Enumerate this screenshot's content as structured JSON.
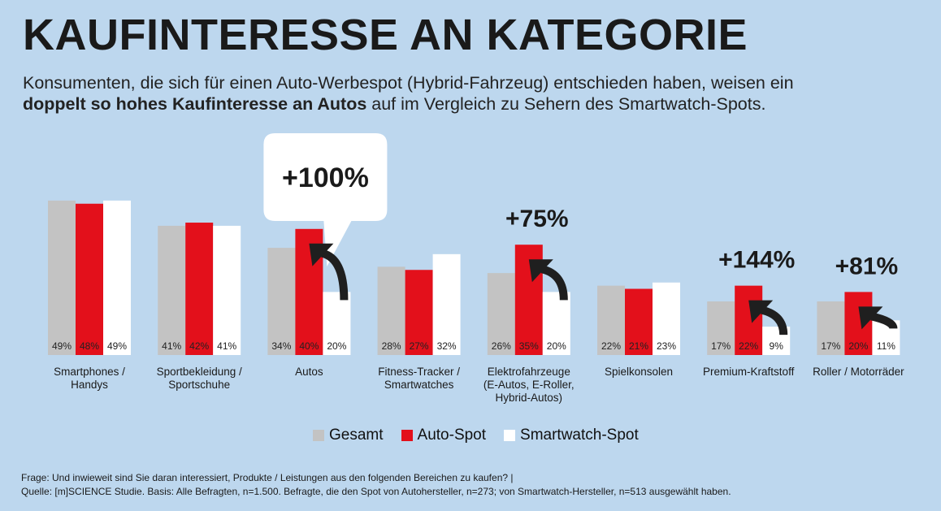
{
  "header": {
    "title": "KAUFINTERESSE AN KATEGORIE",
    "subtitle_part1": "Konsumenten, die sich für einen Auto-Werbespot (Hybrid-Fahrzeug) entschieden haben, weisen ein",
    "subtitle_bold": "doppelt so hohes Kaufinteresse an Autos",
    "subtitle_part2": " auf im Vergleich zu Sehern des Smartwatch-Spots."
  },
  "legend": {
    "gesamt": "Gesamt",
    "auto": "Auto-Spot",
    "smartwatch": "Smartwatch-Spot"
  },
  "footer": {
    "line1": "Frage: Und inwieweit sind Sie daran interessiert, Produkte / Leistungen aus den folgenden Bereichen zu kaufen? |",
    "line2": "Quelle: [m]SCIENCE Studie. Basis: Alle Befragten, n=1.500. Befragte, die den Spot von Autohersteller, n=273; von Smartwatch-Hersteller, n=513 ausgewählt haben."
  },
  "colors": {
    "background": "#bdd7ee",
    "gesamt": "#c3c3c3",
    "auto": "#e3101b",
    "smartwatch": "#ffffff",
    "arrow": "#1f1f1f"
  },
  "chart_data": {
    "type": "bar",
    "ylim": [
      0,
      50
    ],
    "categories": [
      "Smartphones / Handys",
      "Sportbekleidung / Sportschuhe",
      "Autos",
      "Fitness-Tracker / Smartwatches",
      "Elektrofahrzeuge (E-Autos, E-Roller, Hybrid-Autos)",
      "Spielkonsolen",
      "Premium-Kraftstoff",
      "Roller / Motorräder"
    ],
    "category_lines": [
      [
        "Smartphones /",
        "Handys"
      ],
      [
        "Sportbekleidung /",
        "Sportschuhe"
      ],
      [
        "Autos"
      ],
      [
        "Fitness-Tracker /",
        "Smartwatches"
      ],
      [
        "Elektrofahrzeuge",
        "(E-Autos, E-Roller,",
        "Hybrid-Autos)"
      ],
      [
        "Spielkonsolen"
      ],
      [
        "Premium-Kraftstoff"
      ],
      [
        "Roller / Motorräder"
      ]
    ],
    "series": [
      {
        "name": "Gesamt",
        "values": [
          49,
          41,
          34,
          28,
          26,
          22,
          17,
          17
        ],
        "labels": [
          "49%",
          "41%",
          "34%",
          "28%",
          "26%",
          "22%",
          "17%",
          "17%"
        ]
      },
      {
        "name": "Auto-Spot",
        "values": [
          48,
          42,
          40,
          27,
          35,
          21,
          22,
          20
        ],
        "labels": [
          "48%",
          "42%",
          "40%",
          "27%",
          "35%",
          "21%",
          "22%",
          "20%"
        ]
      },
      {
        "name": "Smartwatch-Spot",
        "values": [
          49,
          41,
          20,
          32,
          20,
          23,
          9,
          11
        ],
        "labels": [
          "49%",
          "41%",
          "20%",
          "32%",
          "20%",
          "23%",
          "9%",
          "11%"
        ]
      }
    ],
    "annotations": [
      {
        "category_index": 2,
        "text": "+100%",
        "style": "callout"
      },
      {
        "category_index": 4,
        "text": "+75%",
        "style": "plain"
      },
      {
        "category_index": 6,
        "text": "+144%",
        "style": "plain"
      },
      {
        "category_index": 7,
        "text": "+81%",
        "style": "plain"
      }
    ]
  }
}
